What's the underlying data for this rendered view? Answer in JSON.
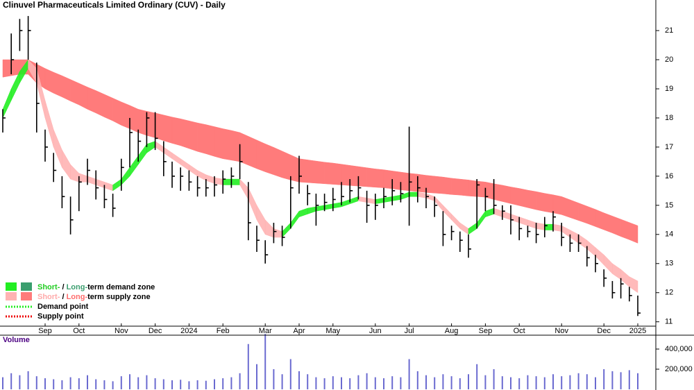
{
  "chart_data": {
    "type": "candlestick",
    "title": "Clinuvel Pharmaceuticals Limited Ordinary (CUV) - Daily",
    "categories": [
      null,
      null,
      null,
      null,
      null,
      "Sep",
      null,
      null,
      null,
      "Oct",
      null,
      null,
      null,
      null,
      "Nov",
      null,
      null,
      null,
      "Dec",
      null,
      null,
      null,
      "2024",
      null,
      null,
      null,
      "Feb",
      null,
      null,
      null,
      null,
      "Mar",
      null,
      null,
      null,
      "Apr",
      null,
      null,
      null,
      "May",
      null,
      null,
      null,
      null,
      "Jun",
      null,
      null,
      null,
      "Jul",
      null,
      null,
      null,
      null,
      "Aug",
      null,
      null,
      null,
      "Sep",
      null,
      null,
      null,
      "Oct",
      null,
      null,
      null,
      null,
      "Nov",
      null,
      null,
      null,
      null,
      "Dec",
      null,
      null,
      null,
      "2025"
    ],
    "close": [
      18.0,
      20.0,
      21.0,
      21.0,
      18.5,
      17.0,
      16.2,
      15.3,
      14.5,
      15.8,
      16.2,
      15.6,
      15.2,
      14.9,
      16.3,
      17.5,
      17.2,
      18.0,
      17.3,
      16.5,
      16.0,
      16.0,
      15.8,
      15.6,
      15.6,
      15.7,
      15.9,
      16.0,
      16.5,
      14.4,
      13.8,
      13.3,
      14.1,
      13.9,
      15.6,
      16.0,
      15.4,
      15.0,
      15.1,
      15.2,
      15.3,
      15.5,
      15.6,
      15.0,
      15.0,
      15.3,
      15.5,
      15.4,
      15.8,
      15.6,
      15.3,
      15.0,
      14.0,
      14.1,
      13.8,
      13.5,
      15.7,
      15.3,
      15.0,
      14.8,
      14.5,
      14.2,
      14.1,
      14.0,
      14.3,
      14.6,
      13.9,
      13.7,
      13.7,
      13.2,
      13.0,
      12.5,
      12.0,
      12.3,
      11.9,
      11.3
    ],
    "high": [
      18.3,
      20.9,
      21.4,
      21.5,
      19.9,
      17.6,
      16.8,
      16.0,
      15.3,
      16.0,
      16.6,
      16.2,
      15.7,
      15.4,
      16.6,
      18.0,
      17.6,
      18.2,
      18.2,
      17.2,
      16.5,
      16.3,
      16.2,
      16.0,
      15.9,
      16.0,
      16.2,
      16.3,
      17.1,
      15.8,
      14.3,
      13.8,
      14.4,
      14.3,
      16.0,
      16.7,
      15.7,
      15.4,
      15.4,
      15.6,
      15.8,
      15.9,
      16.0,
      15.5,
      15.4,
      15.6,
      15.9,
      15.8,
      17.7,
      16.0,
      15.6,
      15.3,
      14.8,
      14.3,
      14.1,
      14.0,
      15.9,
      15.6,
      15.9,
      15.0,
      15.0,
      14.6,
      14.3,
      14.4,
      14.6,
      14.8,
      14.4,
      14.0,
      14.0,
      13.6,
      13.3,
      12.8,
      12.4,
      12.5,
      12.2,
      11.9
    ],
    "low": [
      17.5,
      19.5,
      20.3,
      20.0,
      17.5,
      16.5,
      15.8,
      14.9,
      14.0,
      14.8,
      15.7,
      15.2,
      14.9,
      14.6,
      15.5,
      16.3,
      16.5,
      17.0,
      16.9,
      16.0,
      15.6,
      15.5,
      15.5,
      15.3,
      15.3,
      15.3,
      15.4,
      15.6,
      15.9,
      13.8,
      13.4,
      13.0,
      13.7,
      13.6,
      14.2,
      15.4,
      15.0,
      14.3,
      14.8,
      14.8,
      15.0,
      15.1,
      15.2,
      14.4,
      14.5,
      14.9,
      15.0,
      15.1,
      14.3,
      15.1,
      14.9,
      14.6,
      13.6,
      13.8,
      13.4,
      13.2,
      14.2,
      14.8,
      14.7,
      14.5,
      14.0,
      13.8,
      13.9,
      13.7,
      13.9,
      14.1,
      13.6,
      13.4,
      13.4,
      12.9,
      12.7,
      12.2,
      11.8,
      11.8,
      11.7,
      11.2
    ],
    "long_zone": {
      "upper": [
        20.0,
        20.0,
        20.0,
        20.0,
        19.85,
        19.7,
        19.57,
        19.45,
        19.32,
        19.19,
        19.06,
        18.94,
        18.81,
        18.68,
        18.55,
        18.43,
        18.3,
        18.23,
        18.17,
        18.1,
        18.03,
        17.97,
        17.9,
        17.83,
        17.77,
        17.7,
        17.63,
        17.57,
        17.5,
        17.37,
        17.24,
        17.11,
        16.99,
        16.86,
        16.73,
        16.6,
        16.56,
        16.52,
        16.48,
        16.45,
        16.41,
        16.37,
        16.33,
        16.29,
        16.25,
        16.22,
        16.18,
        16.14,
        16.1,
        16.07,
        16.03,
        16.0,
        15.97,
        15.93,
        15.9,
        15.87,
        15.83,
        15.8,
        15.74,
        15.69,
        15.63,
        15.58,
        15.52,
        15.47,
        15.41,
        15.36,
        15.3,
        15.19,
        15.08,
        14.97,
        14.86,
        14.74,
        14.63,
        14.52,
        14.41,
        14.3
      ],
      "lower": [
        19.4,
        19.45,
        19.5,
        19.5,
        19.2,
        19.0,
        18.85,
        18.72,
        18.58,
        18.45,
        18.3,
        18.17,
        18.03,
        17.9,
        17.75,
        17.63,
        17.5,
        17.4,
        17.32,
        17.22,
        17.13,
        17.05,
        16.95,
        16.85,
        16.77,
        16.68,
        16.6,
        16.55,
        16.5,
        16.38,
        16.26,
        16.15,
        16.05,
        15.95,
        15.87,
        15.8,
        15.78,
        15.76,
        15.74,
        15.72,
        15.7,
        15.68,
        15.66,
        15.64,
        15.62,
        15.6,
        15.57,
        15.53,
        15.5,
        15.47,
        15.44,
        15.42,
        15.4,
        15.37,
        15.35,
        15.32,
        15.3,
        15.28,
        15.2,
        15.13,
        15.06,
        14.99,
        14.92,
        14.85,
        14.79,
        14.74,
        14.68,
        14.58,
        14.48,
        14.38,
        14.27,
        14.16,
        14.05,
        13.93,
        13.82,
        13.7
      ],
      "demand_color": "#3a9e6e",
      "supply_color": "#ff7b7b"
    },
    "short_zone": {
      "upper": [
        18.3,
        19.0,
        19.6,
        20.0,
        19.7,
        18.6,
        17.6,
        16.9,
        16.4,
        16.1,
        16.0,
        15.9,
        15.8,
        15.7,
        15.9,
        16.3,
        16.7,
        17.1,
        17.2,
        17.0,
        16.8,
        16.6,
        16.4,
        16.2,
        16.05,
        15.95,
        15.9,
        15.9,
        15.9,
        15.6,
        15.0,
        14.5,
        14.2,
        14.1,
        14.4,
        14.8,
        14.9,
        14.95,
        15.0,
        15.05,
        15.1,
        15.2,
        15.3,
        15.25,
        15.2,
        15.25,
        15.3,
        15.35,
        15.45,
        15.45,
        15.4,
        15.3,
        15.0,
        14.7,
        14.4,
        14.2,
        14.4,
        14.8,
        14.9,
        14.8,
        14.7,
        14.6,
        14.5,
        14.4,
        14.35,
        14.35,
        14.3,
        14.15,
        14.0,
        13.8,
        13.55,
        13.3,
        13.0,
        12.8,
        12.55,
        12.4
      ],
      "lower": [
        18.0,
        18.6,
        19.2,
        19.7,
        19.2,
        18.0,
        17.0,
        16.3,
        15.9,
        15.8,
        15.8,
        15.7,
        15.6,
        15.5,
        15.7,
        16.0,
        16.4,
        16.8,
        17.0,
        16.8,
        16.6,
        16.4,
        16.2,
        16.0,
        15.85,
        15.75,
        15.7,
        15.7,
        15.7,
        15.2,
        14.5,
        14.0,
        13.9,
        13.9,
        14.2,
        14.6,
        14.7,
        14.8,
        14.85,
        14.9,
        14.95,
        15.05,
        15.15,
        15.1,
        15.05,
        15.1,
        15.15,
        15.2,
        15.3,
        15.3,
        15.25,
        15.15,
        14.8,
        14.5,
        14.2,
        14.0,
        14.2,
        14.6,
        14.7,
        14.6,
        14.5,
        14.4,
        14.3,
        14.2,
        14.15,
        14.15,
        14.1,
        13.9,
        13.7,
        13.5,
        13.25,
        12.95,
        12.65,
        12.45,
        12.2,
        12.0
      ],
      "demand_color": "#22ee22",
      "supply_color": "#ffb3b3"
    },
    "ylim": [
      10.85,
      22.05
    ],
    "yticks": [
      11,
      12,
      13,
      14,
      15,
      16,
      17,
      18,
      19,
      20,
      21
    ],
    "volume": {
      "label": "Volume",
      "values": [
        120000,
        160000,
        140000,
        180000,
        130000,
        110000,
        100000,
        90000,
        120000,
        110000,
        140000,
        100000,
        90000,
        80000,
        130000,
        150000,
        120000,
        140000,
        110000,
        100000,
        90000,
        95000,
        80000,
        90000,
        85000,
        100000,
        110000,
        120000,
        160000,
        450000,
        250000,
        550000,
        200000,
        150000,
        300000,
        180000,
        150000,
        120000,
        110000,
        130000,
        120000,
        110000,
        140000,
        160000,
        120000,
        110000,
        130000,
        120000,
        300000,
        180000,
        140000,
        120000,
        150000,
        130000,
        110000,
        150000,
        250000,
        140000,
        200000,
        130000,
        120000,
        110000,
        140000,
        130000,
        120000,
        150000,
        130000,
        140000,
        160000,
        150000,
        120000,
        200000,
        180000,
        170000,
        190000,
        160000
      ],
      "color": "#6a6ad0",
      "ylim": [
        0,
        538000
      ],
      "yticks": [
        {
          "value": 200000,
          "label": "200,000"
        },
        {
          "value": 400000,
          "label": "400,000"
        }
      ]
    },
    "legend": [
      {
        "short": "Short-",
        "sep": " / ",
        "long": "Long-",
        "rest": "term demand zone"
      },
      {
        "short": "Short-",
        "sep": " / ",
        "long": "Long-",
        "rest": "term supply zone"
      }
    ],
    "points_legend": [
      "Demand point",
      "Supply point"
    ]
  }
}
